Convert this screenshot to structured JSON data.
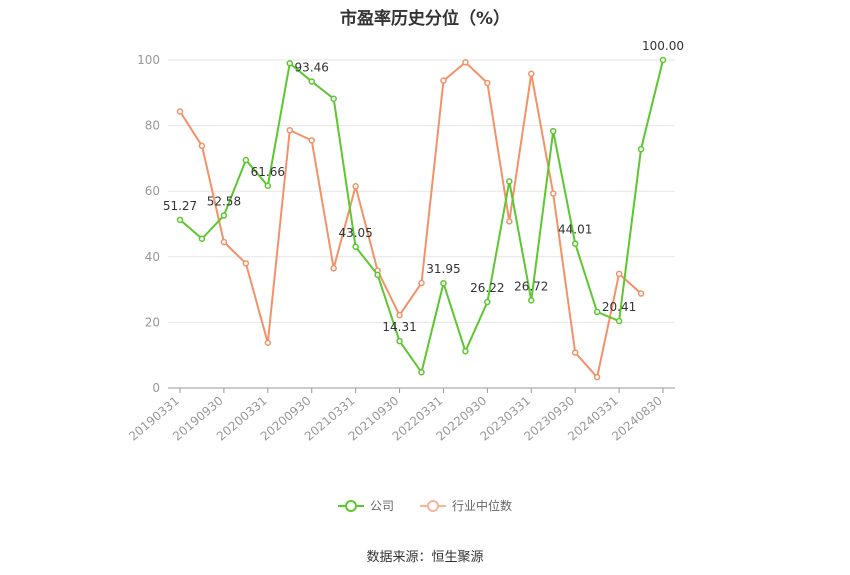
{
  "chart_data": {
    "type": "line",
    "title": "市盈率历史分位（%）",
    "source_note": "数据来源：恒生聚源",
    "ylim": [
      0,
      100
    ],
    "yticks": [
      0,
      20,
      40,
      60,
      80,
      100
    ],
    "grid": true,
    "legend_position": "bottom",
    "x_labels": [
      "20190331",
      "20190930",
      "20200331",
      "20200930",
      "20210331",
      "20210930",
      "20220331",
      "20220930",
      "20230331",
      "20230930",
      "20240331",
      "20240830"
    ],
    "x": [
      "20190331",
      "20190630",
      "20190930",
      "20191231",
      "20200331",
      "20200630",
      "20200930",
      "20201231",
      "20210331",
      "20210630",
      "20210930",
      "20211231",
      "20220331",
      "20220630",
      "20220930",
      "20221231",
      "20230331",
      "20230630",
      "20230930",
      "20231231",
      "20240331",
      "20240630",
      "20240830"
    ],
    "series": [
      {
        "name": "公司",
        "color": "#5cc72f",
        "values": [
          51.27,
          45.5,
          52.58,
          69.5,
          61.66,
          99.0,
          93.46,
          88.2,
          43.05,
          34.5,
          14.31,
          4.8,
          31.95,
          11.2,
          26.22,
          63.0,
          26.72,
          78.3,
          44.01,
          23.2,
          20.41,
          72.8,
          100.0
        ],
        "labels": [
          "51.27",
          null,
          "52.58",
          null,
          "61.66",
          null,
          "93.46",
          null,
          "43.05",
          null,
          "14.31",
          null,
          "31.95",
          null,
          "26.22",
          null,
          "26.72",
          null,
          "44.01",
          null,
          "20.41",
          null,
          "100.00"
        ]
      },
      {
        "name": "行业中位数",
        "color": "#f59168",
        "values": [
          84.3,
          73.8,
          44.5,
          38.0,
          13.8,
          78.6,
          75.5,
          36.5,
          61.5,
          35.8,
          22.2,
          32.0,
          93.7,
          99.3,
          93.0,
          50.8,
          95.8,
          59.3,
          10.8,
          3.3,
          34.8,
          28.8,
          null
        ]
      }
    ]
  }
}
